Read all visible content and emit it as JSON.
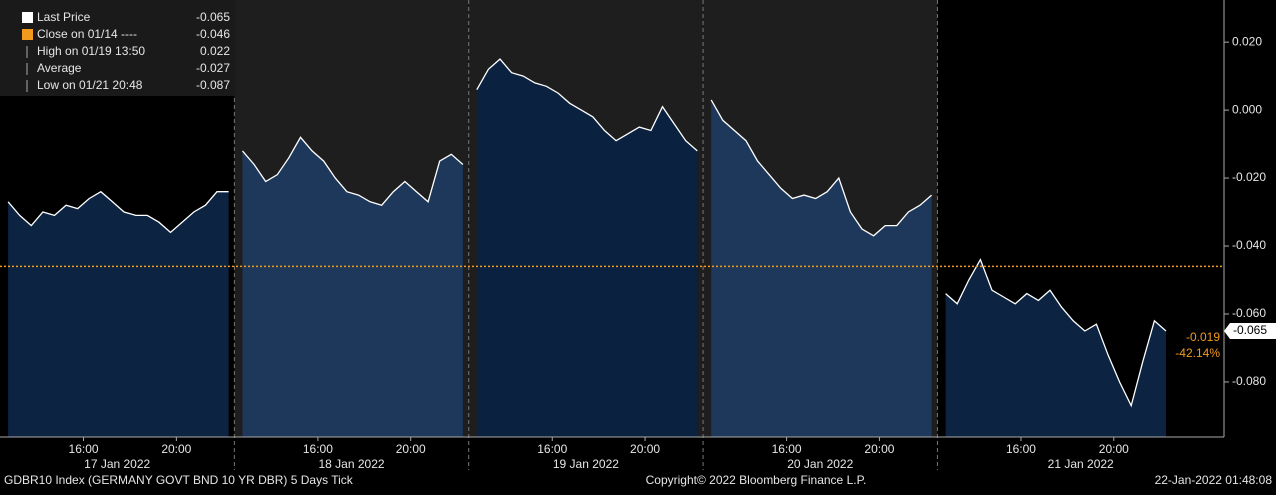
{
  "chart_data": {
    "type": "area",
    "line_color": "#ffffff",
    "close_color": "#f39a1e",
    "ylim": [
      -0.0962,
      0.0324
    ],
    "yticks": [
      {
        "value": 0.02,
        "label": "0.020"
      },
      {
        "value": 0,
        "label": "0.000"
      },
      {
        "value": -0.02,
        "label": "-0.020"
      },
      {
        "value": -0.04,
        "label": "-0.040"
      },
      {
        "value": -0.06,
        "label": "-0.060"
      },
      {
        "value": -0.08,
        "label": "-0.080"
      }
    ],
    "legend": {
      "items": [
        {
          "label": "Last Price",
          "value": -0.065
        },
        {
          "label": "Close on 01/14 ----",
          "value": -0.046
        },
        {
          "label": "High on 01/19 13:50",
          "value": 0.022
        },
        {
          "label": "Average",
          "value": -0.027
        },
        {
          "label": "Low on 01/21 20:48",
          "value": -0.087
        }
      ]
    },
    "last_price_tag": -0.065,
    "change": "-0.019",
    "change_pct": "-42.14%",
    "days": [
      {
        "label": "17 Jan 2022",
        "color": "#0c2342",
        "xlim": [
          12.4,
          22.5
        ],
        "xticks": [
          {
            "value": 16,
            "label": "16:00"
          },
          {
            "value": 20,
            "label": "20:00"
          }
        ],
        "x": [
          12.75,
          13.25,
          13.75,
          14.25,
          14.75,
          15.25,
          15.75,
          16.25,
          16.75,
          17.25,
          17.75,
          18.25,
          18.75,
          19.25,
          19.75,
          20.25,
          20.75,
          21.25,
          21.75,
          22.25
        ],
        "values": [
          -0.027,
          -0.031,
          -0.034,
          -0.03,
          -0.031,
          -0.028,
          -0.029,
          -0.026,
          -0.024,
          -0.027,
          -0.03,
          -0.031,
          -0.031,
          -0.033,
          -0.036,
          -0.033,
          -0.03,
          -0.028,
          -0.024,
          -0.024
        ]
      },
      {
        "label": "18 Jan 2022",
        "color": "#1d385a",
        "xlim": [
          12.4,
          22.5
        ],
        "xticks": [
          {
            "value": 16,
            "label": "16:00"
          },
          {
            "value": 20,
            "label": "20:00"
          }
        ],
        "x": [
          12.75,
          13.25,
          13.75,
          14.25,
          14.75,
          15.25,
          15.75,
          16.25,
          16.75,
          17.25,
          17.75,
          18.25,
          18.75,
          19.25,
          19.75,
          20.25,
          20.75,
          21.25,
          21.75,
          22.25
        ],
        "values": [
          -0.012,
          -0.016,
          -0.021,
          -0.019,
          -0.014,
          -0.008,
          -0.012,
          -0.015,
          -0.02,
          -0.024,
          -0.025,
          -0.027,
          -0.028,
          -0.024,
          -0.021,
          -0.024,
          -0.027,
          -0.015,
          -0.013,
          -0.016
        ]
      },
      {
        "label": "19 Jan 2022",
        "color": "#0a2140",
        "xlim": [
          12.4,
          22.5
        ],
        "xticks": [
          {
            "value": 16,
            "label": "16:00"
          },
          {
            "value": 20,
            "label": "20:00"
          }
        ],
        "x": [
          12.75,
          13.25,
          13.75,
          14.25,
          14.75,
          15.25,
          15.75,
          16.25,
          16.75,
          17.25,
          17.75,
          18.25,
          18.75,
          19.25,
          19.75,
          20.25,
          20.75,
          21.25,
          21.75,
          22.25
        ],
        "values": [
          0.006,
          0.012,
          0.015,
          0.011,
          0.01,
          0.008,
          0.007,
          0.005,
          0.002,
          0.0,
          -0.002,
          -0.006,
          -0.009,
          -0.007,
          -0.005,
          -0.006,
          0.001,
          -0.004,
          -0.009,
          -0.012
        ]
      },
      {
        "label": "20 Jan 2022",
        "color": "#1d385a",
        "xlim": [
          12.4,
          22.5
        ],
        "xticks": [
          {
            "value": 16,
            "label": "16:00"
          },
          {
            "value": 20,
            "label": "20:00"
          }
        ],
        "x": [
          12.75,
          13.25,
          13.75,
          14.25,
          14.75,
          15.25,
          15.75,
          16.25,
          16.75,
          17.25,
          17.75,
          18.25,
          18.75,
          19.25,
          19.75,
          20.25,
          20.75,
          21.25,
          21.75,
          22.25
        ],
        "values": [
          0.003,
          -0.003,
          -0.006,
          -0.009,
          -0.015,
          -0.019,
          -0.023,
          -0.026,
          -0.025,
          -0.026,
          -0.024,
          -0.02,
          -0.03,
          -0.035,
          -0.037,
          -0.034,
          -0.034,
          -0.03,
          -0.028,
          -0.025
        ]
      },
      {
        "label": "21 Jan 2022",
        "color": "#0c2342",
        "xlim": [
          12.4,
          24.75
        ],
        "xticks": [
          {
            "value": 16,
            "label": "16:00"
          },
          {
            "value": 20,
            "label": "20:00"
          }
        ],
        "x": [
          12.75,
          13.25,
          13.75,
          14.25,
          14.75,
          15.25,
          15.75,
          16.25,
          16.75,
          17.25,
          17.75,
          18.25,
          18.75,
          19.25,
          19.75,
          20.25,
          20.75,
          21.25,
          21.75,
          22.25
        ],
        "values": [
          -0.054,
          -0.057,
          -0.05,
          -0.044,
          -0.053,
          -0.055,
          -0.057,
          -0.054,
          -0.056,
          -0.053,
          -0.058,
          -0.062,
          -0.065,
          -0.063,
          -0.072,
          -0.08,
          -0.087,
          -0.074,
          -0.062,
          -0.065
        ]
      }
    ],
    "footer": {
      "left": "GDBR10 Index (GERMANY GOVT BND 10 YR DBR) 5 Days  Tick",
      "center": "Copyright© 2022 Bloomberg Finance L.P.",
      "right": "22-Jan-2022 01:48:08"
    }
  }
}
